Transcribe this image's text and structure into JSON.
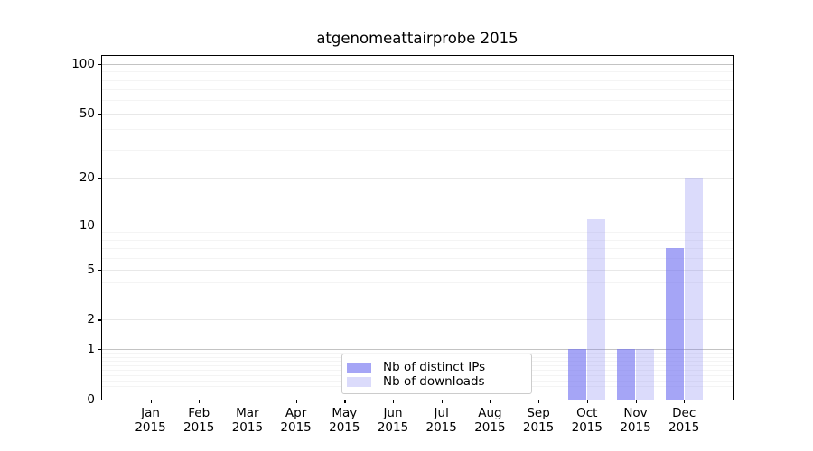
{
  "chart_data": {
    "type": "bar",
    "title": "atgenomeattairprobe 2015",
    "categories": [
      "Jan 2015",
      "Feb 2015",
      "Mar 2015",
      "Apr 2015",
      "May 2015",
      "Jun 2015",
      "Jul 2015",
      "Aug 2015",
      "Sep 2015",
      "Oct 2015",
      "Nov 2015",
      "Dec 2015"
    ],
    "series": [
      {
        "name": "Nb of distinct IPs",
        "color": "rgba(110,110,240,0.62)",
        "values": [
          0,
          0,
          0,
          0,
          0,
          0,
          0,
          0,
          0,
          1,
          1,
          7
        ]
      },
      {
        "name": "Nb of downloads",
        "color": "rgba(110,110,240,0.25)",
        "values": [
          0,
          0,
          0,
          0,
          0,
          0,
          0,
          0,
          0,
          11,
          1,
          20
        ]
      }
    ],
    "yscale": "log1p",
    "y_ticks": [
      0,
      1,
      2,
      5,
      10,
      20,
      50,
      100
    ],
    "y_minor_ticks": [
      0.2,
      0.3,
      0.4,
      0.5,
      0.6,
      0.7,
      0.8,
      0.9,
      3,
      4,
      6,
      7,
      8,
      9,
      15,
      30,
      40,
      60,
      70,
      80,
      90
    ],
    "ylim": [
      0,
      113
    ],
    "xlabel": "",
    "ylabel": "",
    "grid": "horizontal-only",
    "legend_position": "lower center"
  },
  "colors": {
    "background": "#ffffff",
    "spine": "#000000",
    "grid_decade": "#c3c3c3",
    "grid_major": "#e8e8e8",
    "grid_minor": "#f4f4f4",
    "legend_border": "#cccccc",
    "text": "#000000"
  }
}
